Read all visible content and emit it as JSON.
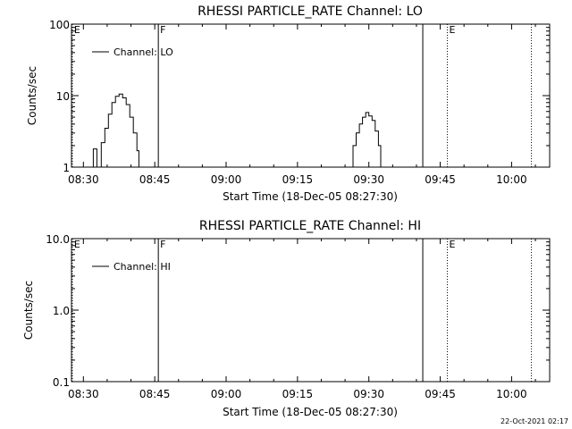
{
  "footer": {
    "timestamp": "22-Oct-2021 02:17"
  },
  "chart_data": [
    {
      "type": "line",
      "title": "RHESSI PARTICLE_RATE Channel: LO",
      "xlabel": "Start Time (18-Dec-05 08:27:30)",
      "ylabel": "Counts/sec",
      "y_scale": "log",
      "xlim": [
        "08:27:30",
        "10:08:00"
      ],
      "ylim": [
        1,
        100
      ],
      "x_ticks": [
        "08:30",
        "08:45",
        "09:00",
        "09:15",
        "09:30",
        "09:45",
        "10:00"
      ],
      "y_ticks": [
        "1",
        "10",
        "100"
      ],
      "legend": {
        "label": "Channel: LO",
        "position": "top-left"
      },
      "markers": [
        {
          "time": "08:27:40",
          "style": "dotted",
          "label": "E"
        },
        {
          "time": "08:45:45",
          "style": "solid",
          "label": "F"
        },
        {
          "time": "09:41:20",
          "style": "solid",
          "label": ""
        },
        {
          "time": "09:46:30",
          "style": "dotted",
          "label": "E"
        },
        {
          "time": "10:04:10",
          "style": "dotted",
          "label": ""
        }
      ],
      "series": [
        {
          "name": "Channel: LO",
          "segments": [
            [
              [
                "08:32:00",
                1.0
              ],
              [
                "08:32:05",
                1.8
              ],
              [
                "08:32:40",
                1.8
              ],
              [
                "08:32:50",
                1.0
              ]
            ],
            [
              [
                "08:33:00",
                1.0
              ],
              [
                "08:33:45",
                2.2
              ],
              [
                "08:34:30",
                3.5
              ],
              [
                "08:35:15",
                5.5
              ],
              [
                "08:36:00",
                8.0
              ],
              [
                "08:36:45",
                9.8
              ],
              [
                "08:37:30",
                10.5
              ],
              [
                "08:38:15",
                9.3
              ],
              [
                "08:39:00",
                7.5
              ],
              [
                "08:39:45",
                5.0
              ],
              [
                "08:40:30",
                3.0
              ],
              [
                "08:41:15",
                1.7
              ],
              [
                "08:41:40",
                1.0
              ]
            ],
            [
              [
                "09:26:20",
                1.0
              ],
              [
                "09:26:40",
                2.0
              ],
              [
                "09:27:20",
                3.0
              ],
              [
                "09:28:00",
                4.0
              ],
              [
                "09:28:40",
                5.0
              ],
              [
                "09:29:20",
                5.8
              ],
              [
                "09:30:00",
                5.2
              ],
              [
                "09:30:40",
                4.5
              ],
              [
                "09:31:20",
                3.2
              ],
              [
                "09:32:00",
                2.0
              ],
              [
                "09:32:30",
                1.0
              ]
            ]
          ]
        }
      ]
    },
    {
      "type": "line",
      "title": "RHESSI PARTICLE_RATE Channel: HI",
      "xlabel": "Start Time (18-Dec-05 08:27:30)",
      "ylabel": "Counts/sec",
      "y_scale": "log",
      "xlim": [
        "08:27:30",
        "10:08:00"
      ],
      "ylim": [
        0.1,
        10
      ],
      "x_ticks": [
        "08:30",
        "08:45",
        "09:00",
        "09:15",
        "09:30",
        "09:45",
        "10:00"
      ],
      "y_ticks": [
        "0.1",
        "1.0",
        "10.0"
      ],
      "legend": {
        "label": "Channel: HI",
        "position": "top-left"
      },
      "markers": [
        {
          "time": "08:27:40",
          "style": "dotted",
          "label": "E"
        },
        {
          "time": "08:45:45",
          "style": "solid",
          "label": "F"
        },
        {
          "time": "09:41:20",
          "style": "solid",
          "label": ""
        },
        {
          "time": "09:46:30",
          "style": "dotted",
          "label": "E"
        },
        {
          "time": "10:04:10",
          "style": "dotted",
          "label": ""
        }
      ],
      "series": [
        {
          "name": "Channel: HI",
          "segments": []
        }
      ]
    }
  ]
}
